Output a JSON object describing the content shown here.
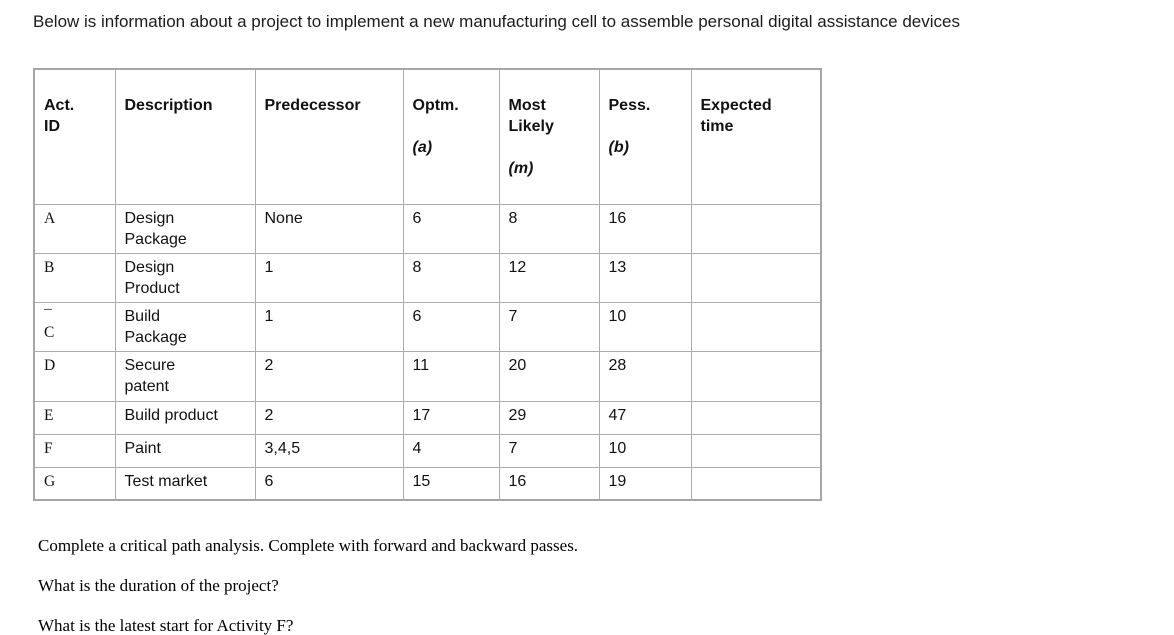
{
  "title": "Below is information about a project to implement a new manufacturing cell to assemble personal digital assistance devices",
  "table": {
    "headers": [
      {
        "label": "Act.\nID",
        "sub": ""
      },
      {
        "label": "Description",
        "sub": ""
      },
      {
        "label": "Predecessor",
        "sub": ""
      },
      {
        "label": "Optm.",
        "sub": "(a)"
      },
      {
        "label": "Most\nLikely",
        "sub": "(m)"
      },
      {
        "label": "Pess.",
        "sub": "(b)"
      },
      {
        "label": "Expected\ntime",
        "sub": ""
      }
    ],
    "rows": [
      {
        "id": "A",
        "description": "Design\nPackage",
        "predecessor": "None",
        "optimistic": "6",
        "most_likely": "8",
        "pessimistic": "16",
        "expected_time": ""
      },
      {
        "id": "B",
        "description": "Design\nProduct",
        "predecessor": "1",
        "optimistic": "8",
        "most_likely": "12",
        "pessimistic": "13",
        "expected_time": ""
      },
      {
        "id": "¯\nC",
        "description": "Build\nPackage",
        "predecessor": "1",
        "optimistic": "6",
        "most_likely": "7",
        "pessimistic": "10",
        "expected_time": ""
      },
      {
        "id": "D",
        "description": "Secure\npatent",
        "predecessor": "2",
        "optimistic": "11",
        "most_likely": "20",
        "pessimistic": "28",
        "expected_time": ""
      },
      {
        "id": "E",
        "description": "Build product",
        "predecessor": "2",
        "optimistic": "17",
        "most_likely": "29",
        "pessimistic": "47",
        "expected_time": ""
      },
      {
        "id": "F",
        "description": "Paint",
        "predecessor": "3,4,5",
        "optimistic": "4",
        "most_likely": "7",
        "pessimistic": "10",
        "expected_time": ""
      },
      {
        "id": "G",
        "description": "Test market",
        "predecessor": "6",
        "optimistic": "15",
        "most_likely": "16",
        "pessimistic": "19",
        "expected_time": ""
      }
    ]
  },
  "questions": [
    "Complete a critical path analysis. Complete with forward and backward passes.",
    "What is the duration of the project?",
    "What is the latest start for Activity F?"
  ]
}
